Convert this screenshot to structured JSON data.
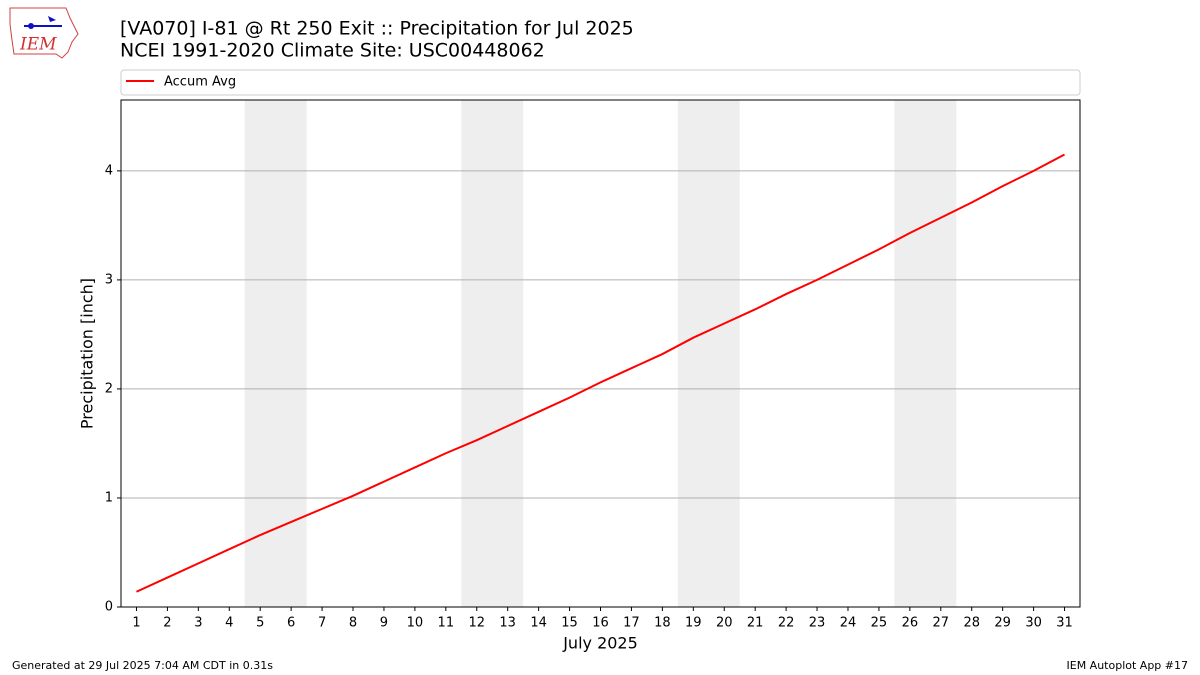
{
  "logo_text": "IEM",
  "footer_left": "Generated at 29 Jul 2025 7:04 AM CDT in 0.31s",
  "footer_right": "IEM Autoplot App #17",
  "chart_data": {
    "type": "line",
    "title": "[VA070] I-81 @ Rt 250 Exit :: Precipitation for Jul 2025",
    "subtitle": "NCEI 1991-2020 Climate Site: USC00448062",
    "x_label": "July 2025",
    "y_label": "Precipitation [inch]",
    "x": [
      1,
      2,
      3,
      4,
      5,
      6,
      7,
      8,
      9,
      10,
      11,
      12,
      13,
      14,
      15,
      16,
      17,
      18,
      19,
      20,
      21,
      22,
      23,
      24,
      25,
      26,
      27,
      28,
      29,
      30,
      31
    ],
    "series": [
      {
        "name": "Accum Avg",
        "color": "#ff0000",
        "values": [
          0.14,
          0.27,
          0.4,
          0.53,
          0.66,
          0.78,
          0.9,
          1.02,
          1.15,
          1.28,
          1.41,
          1.53,
          1.66,
          1.79,
          1.92,
          2.06,
          2.19,
          2.32,
          2.47,
          2.6,
          2.73,
          2.87,
          3.0,
          3.14,
          3.28,
          3.43,
          3.57,
          3.71,
          3.86,
          4.0,
          4.15
        ]
      }
    ],
    "shaded_spans": [
      [
        4.5,
        6.5
      ],
      [
        11.5,
        13.5
      ],
      [
        18.5,
        20.5
      ],
      [
        25.5,
        27.5
      ]
    ],
    "shade_color": "#eeeeee",
    "xlim": [
      0.5,
      31.5
    ],
    "xticks": [
      1,
      2,
      3,
      4,
      5,
      6,
      7,
      8,
      9,
      10,
      11,
      12,
      13,
      14,
      15,
      16,
      17,
      18,
      19,
      20,
      21,
      22,
      23,
      24,
      25,
      26,
      27,
      28,
      29,
      30,
      31
    ],
    "ylim": [
      0,
      4.65
    ],
    "yticks": [
      0,
      1,
      2,
      3,
      4
    ],
    "grid": true,
    "legend": "top"
  }
}
